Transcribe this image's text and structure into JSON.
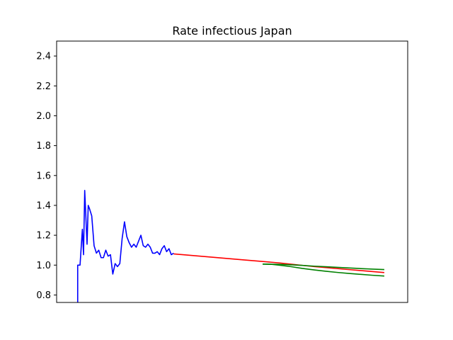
{
  "chart_data": {
    "type": "line",
    "title": "Rate infectious Japan",
    "xlabel": "",
    "ylabel": "",
    "xlim": [
      0,
      150
    ],
    "ylim": [
      0.75,
      2.5
    ],
    "yticks": [
      0.8,
      1.0,
      1.2,
      1.4,
      1.6,
      1.8,
      2.0,
      2.2,
      2.4
    ],
    "ytick_labels": [
      "0.8",
      "1.0",
      "1.2",
      "1.4",
      "1.6",
      "1.8",
      "2.0",
      "2.2",
      "2.4"
    ],
    "xticks": [],
    "grid": false,
    "series": [
      {
        "color": "#0000ff",
        "x": [
          9,
          9,
          10,
          11,
          11.5,
          12,
          13,
          13.5,
          14,
          15,
          16,
          17,
          18,
          19,
          20,
          21,
          22,
          23,
          24,
          25,
          26,
          27,
          28,
          29,
          30,
          31,
          32,
          33,
          34,
          35,
          36,
          37,
          38,
          39,
          40,
          41,
          42,
          43,
          44,
          45,
          46,
          47,
          48,
          49,
          50
        ],
        "values": [
          0.75,
          1.0,
          1.0,
          1.24,
          1.07,
          1.5,
          1.14,
          1.4,
          1.38,
          1.33,
          1.13,
          1.08,
          1.1,
          1.05,
          1.05,
          1.1,
          1.06,
          1.07,
          0.94,
          1.01,
          0.99,
          1.01,
          1.18,
          1.29,
          1.19,
          1.15,
          1.12,
          1.14,
          1.12,
          1.16,
          1.2,
          1.13,
          1.12,
          1.14,
          1.12,
          1.08,
          1.08,
          1.09,
          1.07,
          1.11,
          1.13,
          1.09,
          1.11,
          1.07,
          1.08
        ]
      },
      {
        "color": "#ff0000",
        "x": [
          50,
          65,
          80,
          95,
          110,
          125,
          140
        ],
        "values": [
          1.075,
          1.055,
          1.035,
          1.015,
          0.99,
          0.97,
          0.95
        ]
      },
      {
        "color": "#008000",
        "x": [
          88,
          92,
          95,
          100,
          105,
          110,
          115,
          120,
          125,
          130,
          135,
          140
        ],
        "values": [
          1.007,
          1.006,
          1.005,
          1.002,
          0.998,
          0.993,
          0.989,
          0.985,
          0.981,
          0.977,
          0.973,
          0.97
        ]
      },
      {
        "color": "#008000",
        "x": [
          88,
          92,
          95,
          100,
          105,
          110,
          115,
          120,
          125,
          130,
          135,
          140
        ],
        "values": [
          1.007,
          1.005,
          1.0,
          0.99,
          0.978,
          0.968,
          0.959,
          0.951,
          0.944,
          0.938,
          0.932,
          0.927
        ]
      }
    ]
  }
}
